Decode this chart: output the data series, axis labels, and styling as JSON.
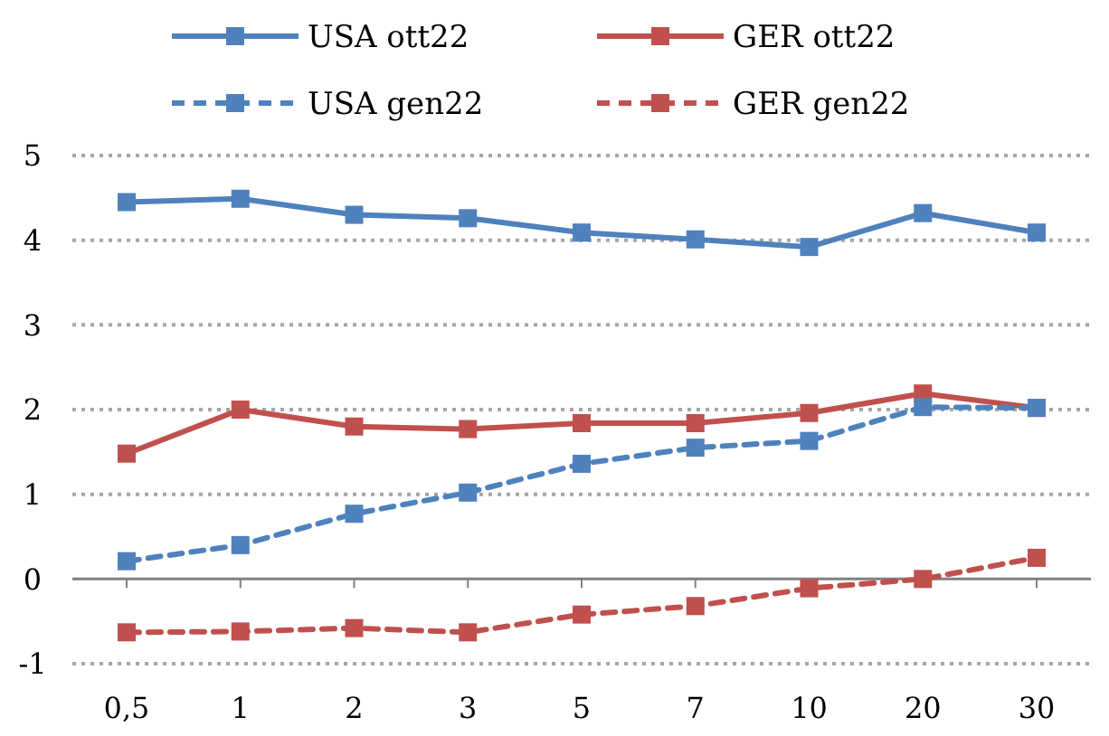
{
  "chart_data": {
    "type": "line",
    "categories": [
      "0,5",
      "1",
      "2",
      "3",
      "5",
      "7",
      "10",
      "20",
      "30"
    ],
    "series": [
      {
        "name": "USA ott22",
        "color": "#4f81bd",
        "line_style": "solid",
        "values": [
          4.45,
          4.49,
          4.3,
          4.26,
          4.09,
          4.01,
          3.92,
          4.32,
          4.09
        ]
      },
      {
        "name": "GER ott22",
        "color": "#c0504d",
        "line_style": "solid",
        "values": [
          1.48,
          2.0,
          1.8,
          1.77,
          1.84,
          1.84,
          1.96,
          2.19,
          2.02
        ]
      },
      {
        "name": "USA gen22",
        "color": "#4f81bd",
        "line_style": "dashed",
        "values": [
          0.21,
          0.4,
          0.77,
          1.02,
          1.36,
          1.55,
          1.63,
          2.03,
          2.02
        ]
      },
      {
        "name": "GER gen22",
        "color": "#c0504d",
        "line_style": "dashed",
        "values": [
          -0.63,
          -0.62,
          -0.58,
          -0.63,
          -0.42,
          -0.32,
          -0.11,
          0.0,
          0.25
        ]
      }
    ],
    "ylim": [
      -1,
      5
    ],
    "yticks": [
      -1,
      0,
      1,
      2,
      3,
      4,
      5
    ],
    "grid": "y",
    "legend": "top",
    "marker": "square"
  }
}
